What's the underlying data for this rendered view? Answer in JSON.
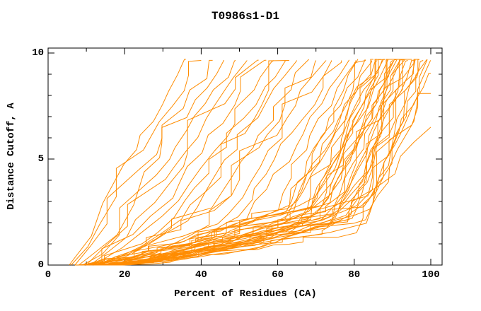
{
  "colors": {
    "background": "#ffffff",
    "text": "#000000",
    "axis": "#000000",
    "curve": "#ff8c00"
  },
  "chart_data": {
    "type": "line",
    "title": "T0986s1-D1",
    "xlabel": "Percent of Residues (CA)",
    "ylabel": "Distance Cutoff, A",
    "xlim": [
      0,
      103
    ],
    "ylim": [
      0,
      10.25
    ],
    "x_major_ticks": [
      0,
      20,
      40,
      60,
      80,
      100
    ],
    "x_minor_ticks": [
      10,
      30,
      50,
      70,
      90
    ],
    "y_major_ticks": [
      0,
      5,
      10
    ],
    "y_minor_ticks": [
      1,
      2,
      3,
      4,
      6,
      7,
      8,
      9
    ],
    "grid": false,
    "legend": null,
    "line_color": "#ff8c00",
    "num_curves": 55,
    "curve_top_cutoff": 9.65,
    "curve_columns": [
      "onset_pct",
      "knee_pct",
      "knee_cutoff",
      "top_pct",
      "end_cutoff"
    ],
    "curves": [
      [
        5.5,
        20,
        4.8,
        36,
        9.65
      ],
      [
        6,
        22,
        4.6,
        40,
        9.65
      ],
      [
        7,
        24,
        4.5,
        43,
        9.65
      ],
      [
        8,
        26,
        4.4,
        46,
        9.65
      ],
      [
        9,
        28,
        4.2,
        49,
        9.65
      ],
      [
        10,
        30,
        4.0,
        52,
        9.65
      ],
      [
        11,
        32,
        3.9,
        55,
        9.65
      ],
      [
        9,
        32,
        3.2,
        57,
        9.65
      ],
      [
        10,
        34,
        3.1,
        59,
        9.65
      ],
      [
        11,
        36,
        3.0,
        61,
        9.65
      ],
      [
        12,
        38,
        2.9,
        63,
        9.65
      ],
      [
        12,
        40,
        2.8,
        65,
        9.65
      ],
      [
        13,
        42,
        2.7,
        68,
        9.65
      ],
      [
        13,
        44,
        2.6,
        70,
        9.65
      ],
      [
        14,
        46,
        2.5,
        72,
        9.65
      ],
      [
        14,
        48,
        2.4,
        74,
        9.65
      ],
      [
        15,
        50,
        2.3,
        76,
        9.65
      ],
      [
        15,
        52,
        2.2,
        78,
        9.65
      ],
      [
        8,
        60,
        2.6,
        80,
        9.65
      ],
      [
        10,
        61,
        2.4,
        81,
        9.65
      ],
      [
        12,
        62,
        2.8,
        82,
        9.65
      ],
      [
        14,
        63,
        2.2,
        83,
        9.65
      ],
      [
        16,
        64,
        2.6,
        84,
        9.65
      ],
      [
        18,
        66,
        2.0,
        85,
        9.65
      ],
      [
        9,
        66,
        3.0,
        86,
        9.65
      ],
      [
        11,
        67,
        2.4,
        86,
        9.65
      ],
      [
        13,
        68,
        2.8,
        87,
        9.65
      ],
      [
        15,
        68,
        2.2,
        87,
        9.65
      ],
      [
        17,
        69,
        2.6,
        88,
        9.65
      ],
      [
        7,
        70,
        3.2,
        88,
        9.65
      ],
      [
        10,
        70,
        2.0,
        89,
        9.65
      ],
      [
        12,
        71,
        2.4,
        89,
        9.65
      ],
      [
        14,
        72,
        2.8,
        90,
        9.65
      ],
      [
        16,
        72,
        2.2,
        90,
        9.65
      ],
      [
        8,
        73,
        2.6,
        91,
        9.65
      ],
      [
        11,
        74,
        3.0,
        91,
        9.65
      ],
      [
        13,
        74,
        2.0,
        92,
        9.65
      ],
      [
        15,
        75,
        2.4,
        92,
        9.65
      ],
      [
        9,
        76,
        2.8,
        93,
        9.65
      ],
      [
        12,
        76,
        2.2,
        93,
        9.65
      ],
      [
        14,
        77,
        2.6,
        94,
        9.65
      ],
      [
        16,
        78,
        3.0,
        94,
        9.65
      ],
      [
        10,
        78,
        2.0,
        95,
        9.65
      ],
      [
        13,
        79,
        2.4,
        95,
        9.65
      ],
      [
        15,
        80,
        2.8,
        96,
        9.65
      ],
      [
        17,
        80,
        2.2,
        96,
        9.65
      ],
      [
        11,
        81,
        2.6,
        97,
        9.65
      ],
      [
        14,
        82,
        2.0,
        97,
        9.65
      ],
      [
        16,
        82,
        2.4,
        98,
        9.65
      ],
      [
        18,
        83,
        2.8,
        98,
        9.65
      ],
      [
        12,
        84,
        2.2,
        99,
        9.65
      ],
      [
        15,
        85,
        2.6,
        100,
        9.65
      ],
      [
        16,
        72,
        1.8,
        100,
        8.0
      ],
      [
        17,
        76,
        1.6,
        100,
        6.5
      ],
      [
        18,
        80,
        1.5,
        100,
        9.0
      ]
    ],
    "jitter_seed": 1234
  }
}
